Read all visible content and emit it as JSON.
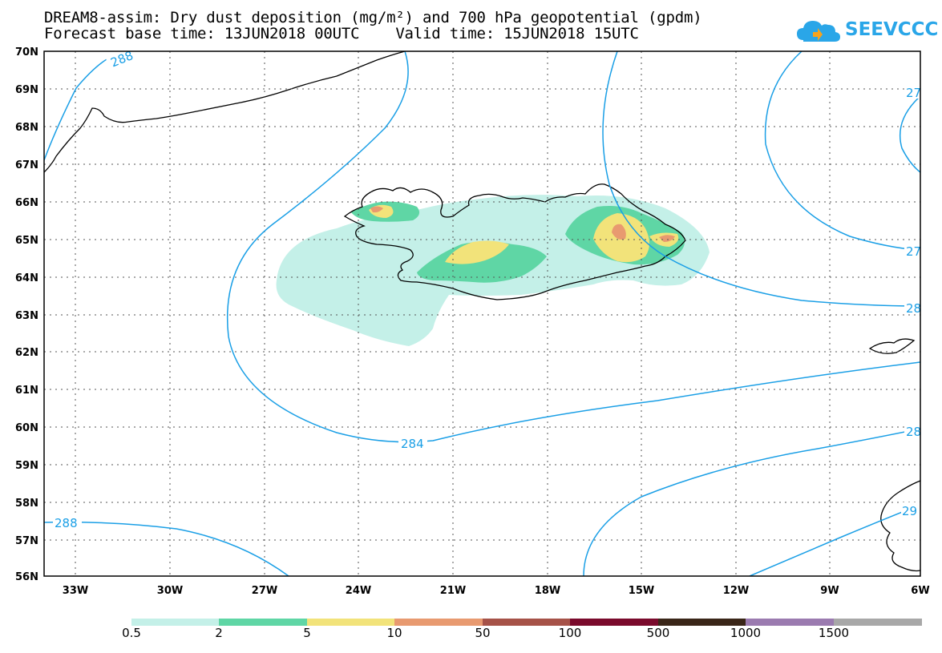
{
  "title_line1": "DREAM8-assim: Dry dust deposition (mg/m²) and 700 hPa geopotential (gpdm)",
  "title_line2": "Forecast base time: 13JUN2018 00UTC    Valid time: 15JUN2018 15UTC",
  "logo_text": "SEEVCCC",
  "lat_labels": [
    "70N",
    "69N",
    "68N",
    "67N",
    "66N",
    "65N",
    "64N",
    "63N",
    "62N",
    "61N",
    "60N",
    "59N",
    "58N",
    "57N",
    "56N"
  ],
  "lon_labels": [
    "33W",
    "30W",
    "27W",
    "24W",
    "21W",
    "18W",
    "15W",
    "12W",
    "9W",
    "6W"
  ],
  "contour_labels": [
    "288",
    "284",
    "288",
    "27",
    "27",
    "28",
    "28",
    "29"
  ],
  "legend": {
    "labels": [
      "0.5",
      "2",
      "5",
      "10",
      "50",
      "100",
      "500",
      "1000",
      "1500"
    ],
    "colors": [
      "#c4f0e8",
      "#5fd6a5",
      "#f2e37a",
      "#e89a70",
      "#a65248",
      "#7a0a2c",
      "#3a2618",
      "#9b7bb0",
      "#a8a8a8"
    ]
  },
  "colors": {
    "contour": "#1a9fe6",
    "coast": "#000000",
    "grid": "#555555"
  }
}
